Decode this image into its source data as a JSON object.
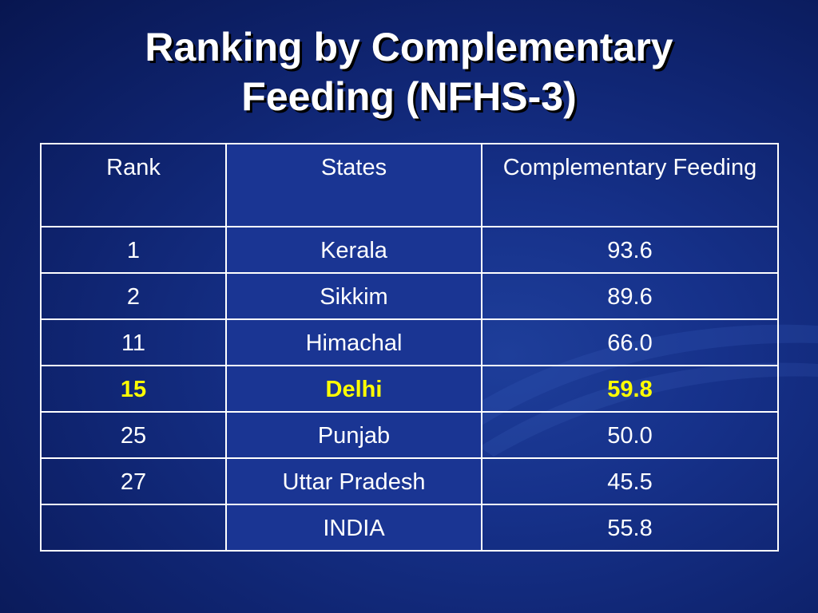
{
  "title_lines": [
    "Ranking by Complementary",
    "Feeding (NFHS-3)"
  ],
  "table": {
    "headers": [
      "Rank",
      "States",
      "Complementary Feeding"
    ],
    "rows": [
      {
        "rank": "1",
        "state": "Kerala",
        "value": "93.6",
        "highlight": false
      },
      {
        "rank": "2",
        "state": "Sikkim",
        "value": "89.6",
        "highlight": false
      },
      {
        "rank": "11",
        "state": "Himachal",
        "value": "66.0",
        "highlight": false
      },
      {
        "rank": "15",
        "state": "Delhi",
        "value": "59.8",
        "highlight": true
      },
      {
        "rank": "25",
        "state": "Punjab",
        "value": "50.0",
        "highlight": false
      },
      {
        "rank": "27",
        "state": "Uttar Pradesh",
        "value": "45.5",
        "highlight": false
      },
      {
        "rank": "",
        "state": "INDIA",
        "value": "55.8",
        "highlight": false
      }
    ]
  },
  "colors": {
    "background": "#16318a",
    "text": "#ffffff",
    "highlight_text": "#ffff00",
    "grid": "#ffffff"
  }
}
